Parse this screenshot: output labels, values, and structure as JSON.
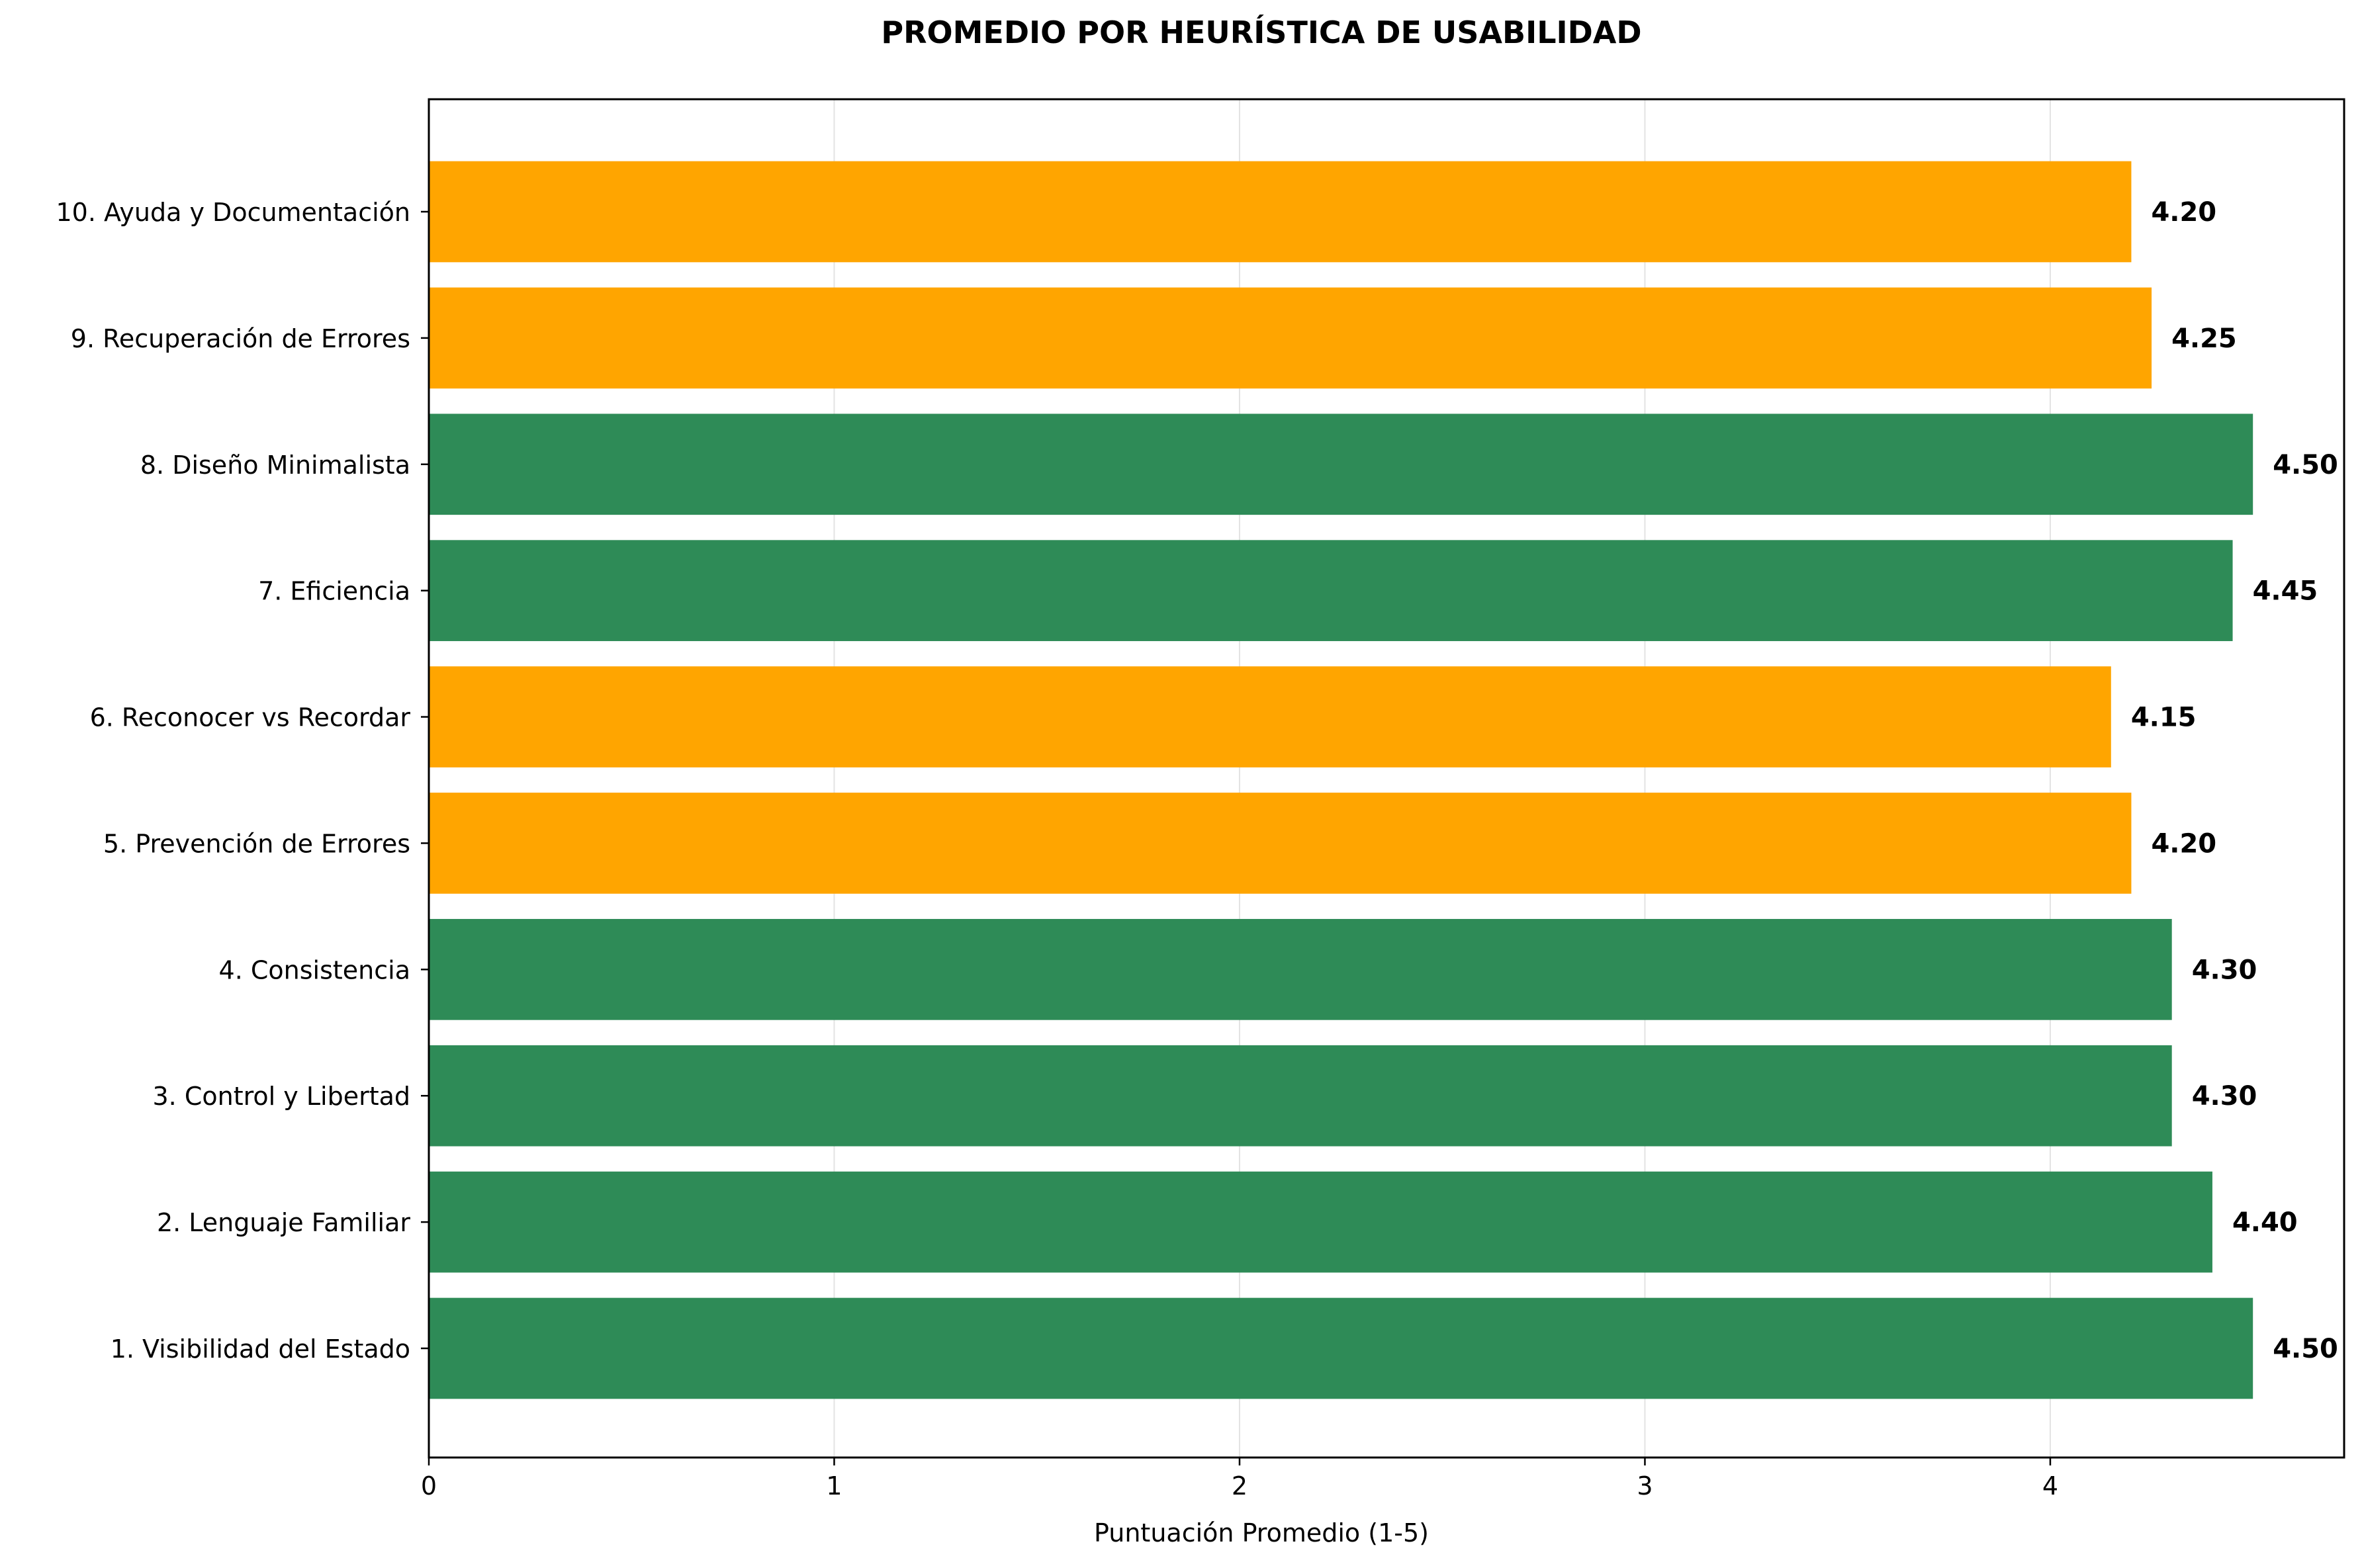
{
  "chart_data": {
    "type": "bar",
    "orientation": "horizontal",
    "title": "PROMEDIO POR HEURÍSTICA DE USABILIDAD",
    "xlabel": "Puntuación Promedio (1-5)",
    "ylabel": "",
    "xlim": [
      0,
      4.725
    ],
    "xticks": [
      0,
      1,
      2,
      3,
      4
    ],
    "grid": "x",
    "categories": [
      "1. Visibilidad del Estado",
      "2. Lenguaje Familiar",
      "3. Control y Libertad",
      "4. Consistencia",
      "5. Prevención de Errores",
      "6. Reconocer vs Recordar",
      "7. Eficiencia",
      "8. Diseño Minimalista",
      "9. Recuperación de Errores",
      "10. Ayuda y Documentación"
    ],
    "values": [
      4.5,
      4.4,
      4.3,
      4.3,
      4.2,
      4.15,
      4.45,
      4.5,
      4.25,
      4.2
    ],
    "value_labels": [
      "4.50",
      "4.40",
      "4.30",
      "4.30",
      "4.20",
      "4.15",
      "4.45",
      "4.50",
      "4.25",
      "4.20"
    ],
    "bar_colors": [
      "#2e8b57",
      "#2e8b57",
      "#2e8b57",
      "#2e8b57",
      "#ffa500",
      "#ffa500",
      "#2e8b57",
      "#2e8b57",
      "#ffa500",
      "#ffa500"
    ]
  }
}
